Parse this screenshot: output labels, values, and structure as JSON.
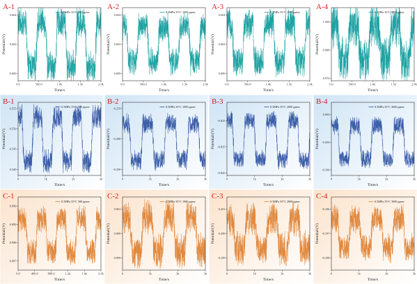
{
  "figure": {
    "rows": [
      {
        "id": "A",
        "color": "#1fa3a3",
        "bg_from": "#ffffff",
        "bg_to": "#ffffff"
      },
      {
        "id": "B",
        "color": "#3c5ea8",
        "bg_from": "#cfe4f5",
        "bg_to": "#ffffff"
      },
      {
        "id": "C",
        "color": "#e0893f",
        "bg_from": "#fbe3cc",
        "bg_to": "#ffffff"
      }
    ]
  },
  "chart_data": [
    {
      "id": "A-1",
      "row": "A",
      "type": "line",
      "label": "A-1",
      "legend": "0.5MPa 35°C 500 ppmv",
      "xlabel": "Time/s",
      "ylabel": "Potential/(V)",
      "xlim": [
        0,
        2000
      ],
      "xticks": [
        {
          "v": 0,
          "t": "0.0"
        },
        {
          "v": 500,
          "t": "500.0"
        },
        {
          "v": 1000,
          "t": "1.0k"
        },
        {
          "v": 1500,
          "t": "1.5k"
        },
        {
          "v": 2000,
          "t": "2.0k"
        }
      ],
      "ylim": [
        0.5995,
        0.6045
      ],
      "yticks": [
        {
          "v": 0.6,
          "t": "0.600"
        },
        {
          "v": 0.602,
          "t": "0.602"
        },
        {
          "v": 0.604,
          "t": "0.604"
        }
      ],
      "signal": {
        "low": 0.6005,
        "high": 0.6035,
        "cycles": 4.2,
        "phase": 0.1,
        "noise": 0.0009
      },
      "series": [
        {
          "values": []
        }
      ]
    },
    {
      "id": "A-2",
      "row": "A",
      "type": "line",
      "label": "A-2",
      "legend": "0.5MPa 35°C 1000 ppmv",
      "xlabel": "Time/s",
      "ylabel": "Potential/(V)",
      "xlim": [
        0,
        2000
      ],
      "xticks": [
        {
          "v": 0,
          "t": "0.0"
        },
        {
          "v": 500,
          "t": "500.0"
        },
        {
          "v": 1000,
          "t": "1.0k"
        },
        {
          "v": 1500,
          "t": "1.5k"
        },
        {
          "v": 2000,
          "t": "2.0k"
        }
      ],
      "ylim": [
        0.5995,
        0.6045
      ],
      "yticks": [
        {
          "v": 0.6,
          "t": "0.600"
        },
        {
          "v": 0.602,
          "t": "0.602"
        },
        {
          "v": 0.604,
          "t": "0.604"
        }
      ],
      "signal": {
        "low": 0.6008,
        "high": 0.6032,
        "cycles": 4.0,
        "phase": 0.3,
        "noise": 0.0008
      },
      "series": [
        {
          "values": []
        }
      ]
    },
    {
      "id": "A-3",
      "row": "A",
      "type": "line",
      "label": "A-3",
      "legend": "0.5MPa 35°C 2000 ppmv",
      "xlabel": "Time/s",
      "ylabel": "Potential/(V)",
      "xlim": [
        0,
        2000
      ],
      "xticks": [
        {
          "v": 0,
          "t": "0.0"
        },
        {
          "v": 500,
          "t": "500.0"
        },
        {
          "v": 1000,
          "t": "1.0k"
        },
        {
          "v": 1500,
          "t": "1.5k"
        },
        {
          "v": 2000,
          "t": "2.0k"
        }
      ],
      "ylim": [
        0.5995,
        0.6045
      ],
      "yticks": [
        {
          "v": 0.6,
          "t": "0.600"
        },
        {
          "v": 0.602,
          "t": "0.602"
        },
        {
          "v": 0.604,
          "t": "0.604"
        }
      ],
      "signal": {
        "low": 0.6008,
        "high": 0.6034,
        "cycles": 4.0,
        "phase": 0.25,
        "noise": 0.0009
      },
      "series": [
        {
          "values": []
        }
      ]
    },
    {
      "id": "A-4",
      "row": "A",
      "type": "line",
      "label": "A-4",
      "legend": "0.5MPa 35°C 3000 ppmv",
      "xlabel": "Time/s",
      "ylabel": "Potential/(V)",
      "xlim": [
        0,
        2000
      ],
      "xticks": [
        {
          "v": 0,
          "t": "0.0"
        },
        {
          "v": 500,
          "t": "500.0"
        },
        {
          "v": 1000,
          "t": "1.0k"
        },
        {
          "v": 1500,
          "t": "1.5k"
        },
        {
          "v": 2000,
          "t": "2.0k"
        }
      ],
      "ylim": [
        0.975,
        1.006
      ],
      "yticks": [
        {
          "v": 0.976,
          "t": "0.976"
        },
        {
          "v": 0.988,
          "t": "0.988"
        },
        {
          "v": 1.0,
          "t": "1.000"
        }
      ],
      "signal": {
        "low": 0.984,
        "high": 0.998,
        "cycles": 4.0,
        "phase": 0.2,
        "noise": 0.008
      },
      "series": [
        {
          "values": []
        }
      ]
    },
    {
      "id": "B-1",
      "row": "B",
      "type": "line",
      "label": "B-1",
      "legend": "0.5MPa 35°C 500 ppmv",
      "xlabel": "Time/s",
      "ylabel": "Potential/(V)",
      "xlim": [
        0,
        3000
      ],
      "xticks": [
        {
          "v": 0,
          "t": "0"
        },
        {
          "v": 1000,
          "t": "1k"
        },
        {
          "v": 2000,
          "t": "2k"
        },
        {
          "v": 3000,
          "t": "3k"
        }
      ],
      "ylim": [
        0.5385,
        0.5565
      ],
      "yticks": [
        {
          "v": 0.54,
          "t": "0.540"
        },
        {
          "v": 0.545,
          "t": "0.545"
        },
        {
          "v": 0.55,
          "t": "0.550"
        },
        {
          "v": 0.555,
          "t": "0.555"
        }
      ],
      "signal": {
        "low": 0.542,
        "high": 0.553,
        "cycles": 4.2,
        "phase": 0.3,
        "noise": 0.0025
      },
      "series": [
        {
          "values": []
        }
      ]
    },
    {
      "id": "B-2",
      "row": "B",
      "type": "line",
      "label": "B-2",
      "legend": "0.5MPa 35°C 1000 ppmv",
      "xlabel": "Time/s",
      "ylabel": "Potential/(V)",
      "xlim": [
        0,
        3000
      ],
      "xticks": [
        {
          "v": 0,
          "t": "0"
        },
        {
          "v": 1000,
          "t": "1k"
        },
        {
          "v": 2000,
          "t": "2k"
        },
        {
          "v": 3000,
          "t": "3k"
        }
      ],
      "ylim": [
        -0.292,
        -0.268
      ],
      "yticks": [
        {
          "v": -0.29,
          "t": "-0.290"
        },
        {
          "v": -0.28,
          "t": "-0.280"
        },
        {
          "v": -0.27,
          "t": "-0.270"
        }
      ],
      "signal": {
        "low": -0.287,
        "high": -0.275,
        "cycles": 3.6,
        "phase": 0.2,
        "noise": 0.0028
      },
      "series": [
        {
          "values": []
        }
      ]
    },
    {
      "id": "B-3",
      "row": "B",
      "type": "line",
      "label": "B-3",
      "legend": "0.5MPa 35°C 2000 ppmv",
      "xlabel": "Time/s",
      "ylabel": "Potential/(V)",
      "xlim": [
        0,
        3000
      ],
      "xticks": [
        {
          "v": 0,
          "t": "0"
        },
        {
          "v": 1000,
          "t": "1k"
        },
        {
          "v": 2000,
          "t": "2k"
        },
        {
          "v": 3000,
          "t": "3k"
        }
      ],
      "ylim": [
        -0.846,
        -0.818
      ],
      "yticks": [
        {
          "v": -0.845,
          "t": "-0.845"
        },
        {
          "v": -0.835,
          "t": "-0.835"
        },
        {
          "v": -0.825,
          "t": "-0.825"
        }
      ],
      "signal": {
        "low": -0.84,
        "high": -0.825,
        "cycles": 3.8,
        "phase": 0.25,
        "noise": 0.003
      },
      "series": [
        {
          "values": []
        }
      ]
    },
    {
      "id": "B-4",
      "row": "B",
      "type": "line",
      "label": "B-4",
      "legend": "0.5MPa 35°C 3000 ppmv",
      "xlabel": "Time/s",
      "ylabel": "Potential/(V)",
      "xlim": [
        0,
        3000
      ],
      "xticks": [
        {
          "v": 0,
          "t": "0"
        },
        {
          "v": 1000,
          "t": "1k"
        },
        {
          "v": 2000,
          "t": "2k"
        },
        {
          "v": 3000,
          "t": "3k"
        }
      ],
      "ylim": [
        -0.11,
        0.022
      ],
      "yticks": [
        {
          "v": -0.1,
          "t": "-0.100"
        },
        {
          "v": -0.05,
          "t": "-0.050"
        },
        {
          "v": 0.0,
          "t": "0.000"
        }
      ],
      "signal": {
        "low": -0.08,
        "high": -0.02,
        "cycles": 3.8,
        "phase": 0.2,
        "noise": 0.014
      },
      "series": [
        {
          "values": []
        }
      ]
    },
    {
      "id": "C-1",
      "row": "C",
      "type": "line",
      "label": "C-1",
      "legend": "0.5MPa 35°C 500 ppmv",
      "xlabel": "Time/s",
      "ylabel": "Potential/(V)",
      "xlim": [
        0,
        2000
      ],
      "xticks": [
        {
          "v": 0,
          "t": "0.0"
        },
        {
          "v": 400,
          "t": "400.0"
        },
        {
          "v": 800,
          "t": "800.0"
        },
        {
          "v": 1200,
          "t": "1.2k"
        },
        {
          "v": 1600,
          "t": "1.6k"
        },
        {
          "v": 2000,
          "t": "2.0k"
        }
      ],
      "ylim": [
        0.9865,
        0.9905
      ],
      "yticks": [
        {
          "v": 0.987,
          "t": "0.987"
        },
        {
          "v": 0.988,
          "t": "0.988"
        },
        {
          "v": 0.989,
          "t": "0.989"
        },
        {
          "v": 0.99,
          "t": "0.990"
        }
      ],
      "signal": {
        "low": 0.9875,
        "high": 0.9893,
        "cycles": 4.2,
        "phase": 0.1,
        "noise": 0.0006
      },
      "series": [
        {
          "values": []
        }
      ]
    },
    {
      "id": "C-2",
      "row": "C",
      "type": "line",
      "label": "C-2",
      "legend": "0.5MPa 35°C 1000 ppmv",
      "xlabel": "Time/s",
      "ylabel": "Potential/(V)",
      "xlim": [
        0,
        3000
      ],
      "xticks": [
        {
          "v": 0,
          "t": "0"
        },
        {
          "v": 1000,
          "t": "1k"
        },
        {
          "v": 2000,
          "t": "2k"
        },
        {
          "v": 3000,
          "t": "3k"
        }
      ],
      "ylim": [
        0.8985,
        0.9015
      ],
      "yticks": [
        {
          "v": 0.899,
          "t": "0.899"
        },
        {
          "v": 0.9,
          "t": "0.900"
        },
        {
          "v": 0.901,
          "t": "0.901"
        }
      ],
      "signal": {
        "low": 0.8993,
        "high": 0.9007,
        "cycles": 3.8,
        "phase": 0.15,
        "noise": 0.0006
      },
      "series": [
        {
          "values": []
        }
      ]
    },
    {
      "id": "C-3",
      "row": "C",
      "type": "line",
      "label": "C-3",
      "legend": "0.5MPa 35°C 2000 ppmv",
      "xlabel": "Time/s",
      "ylabel": "Potential/(V)",
      "xlim": [
        0,
        3000
      ],
      "xticks": [
        {
          "v": 0,
          "t": "0"
        },
        {
          "v": 1000,
          "t": "1k"
        },
        {
          "v": 2000,
          "t": "2k"
        },
        {
          "v": 3000,
          "t": "3k"
        }
      ],
      "ylim": [
        0.1985,
        0.2015
      ],
      "yticks": [
        {
          "v": 0.199,
          "t": "0.199"
        },
        {
          "v": 0.2,
          "t": "0.200"
        },
        {
          "v": 0.201,
          "t": "0.201"
        }
      ],
      "signal": {
        "low": 0.1994,
        "high": 0.2006,
        "cycles": 3.8,
        "phase": 0.2,
        "noise": 0.0006
      },
      "series": [
        {
          "values": []
        }
      ]
    },
    {
      "id": "C-4",
      "row": "C",
      "type": "line",
      "label": "C-4",
      "legend": "0.5MPa 35°C 3000 ppmv",
      "xlabel": "Time/s",
      "ylabel": "Potential/(V)",
      "xlim": [
        0,
        3000
      ],
      "xticks": [
        {
          "v": 0,
          "t": "0"
        },
        {
          "v": 1000,
          "t": "1k"
        },
        {
          "v": 2000,
          "t": "2k"
        },
        {
          "v": 3000,
          "t": "3k"
        }
      ],
      "ylim": [
        -0.1985,
        -0.1955
      ],
      "yticks": [
        {
          "v": -0.198,
          "t": "-0.198"
        },
        {
          "v": -0.197,
          "t": "-0.197"
        },
        {
          "v": -0.196,
          "t": "-0.196"
        }
      ],
      "signal": {
        "low": -0.1976,
        "high": -0.1964,
        "cycles": 3.8,
        "phase": 0.2,
        "noise": 0.0005
      },
      "series": [
        {
          "values": []
        }
      ]
    }
  ]
}
